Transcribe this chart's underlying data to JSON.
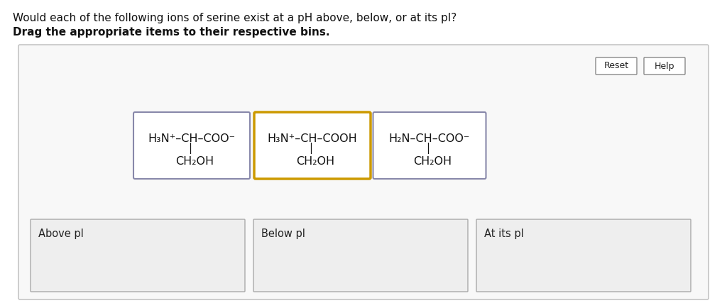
{
  "title_line1": "Would each of the following ions of serine exist at a pH above, below, or at its pI?",
  "title_line2": "Drag the appropriate items to their respective bins.",
  "bg_color": "#f5f5f5",
  "outer_box_color": "#cccccc",
  "card1": {
    "line1": "H₃N⁺–CH–COO⁻",
    "line2": "CH₂OH",
    "border_color": "#8888aa",
    "border_width": 1.5
  },
  "card2": {
    "line1": "H₃N⁺–CH–COOH",
    "line2": "CH₂OH",
    "border_color": "#cc9900",
    "border_width": 2.5
  },
  "card3": {
    "line1": "H₂N–CH–COO⁻",
    "line2": "CH₂OH",
    "border_color": "#8888aa",
    "border_width": 1.5
  },
  "bin1_label": "Above pI",
  "bin2_label": "Below pI",
  "bin3_label": "At its pI",
  "bin_bg": "#eeeeee",
  "bin_border": "#aaaaaa",
  "reset_label": "Reset",
  "help_label": "Help",
  "button_border": "#888888",
  "button_bg": "#ffffff"
}
